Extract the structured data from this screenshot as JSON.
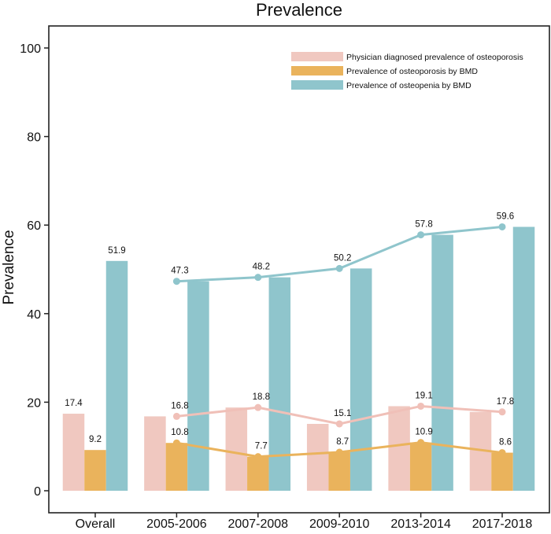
{
  "chart_data": {
    "type": "bar",
    "title": "Prevalence",
    "xlabel": "",
    "ylabel": "Prevalence",
    "ylim": [
      0,
      100
    ],
    "yticks": [
      0,
      20,
      40,
      60,
      80,
      100
    ],
    "grid": false,
    "legend_position": "top-right",
    "categories": [
      "Overall",
      "2005-2006",
      "2007-2008",
      "2009-2010",
      "2013-2014",
      "2017-2018"
    ],
    "series": [
      {
        "name": "Physician diagnosed prevalence of osteoporosis",
        "color": "#f0c8c0",
        "line_color": "#f0c0b8",
        "values": [
          17.4,
          16.8,
          18.8,
          15.1,
          19.1,
          17.8
        ]
      },
      {
        "name": "Prevalence of osteoporosis by BMD",
        "color": "#eab35c",
        "line_color": "#eab35c",
        "values": [
          9.2,
          10.8,
          7.7,
          8.7,
          10.9,
          8.6
        ]
      },
      {
        "name": "Prevalence of osteopenia by BMD",
        "color": "#8fc5cc",
        "line_color": "#8fc5cc",
        "values": [
          51.9,
          47.3,
          48.2,
          50.2,
          57.8,
          59.6
        ]
      }
    ],
    "trend_lines_from_category_index": 1
  }
}
